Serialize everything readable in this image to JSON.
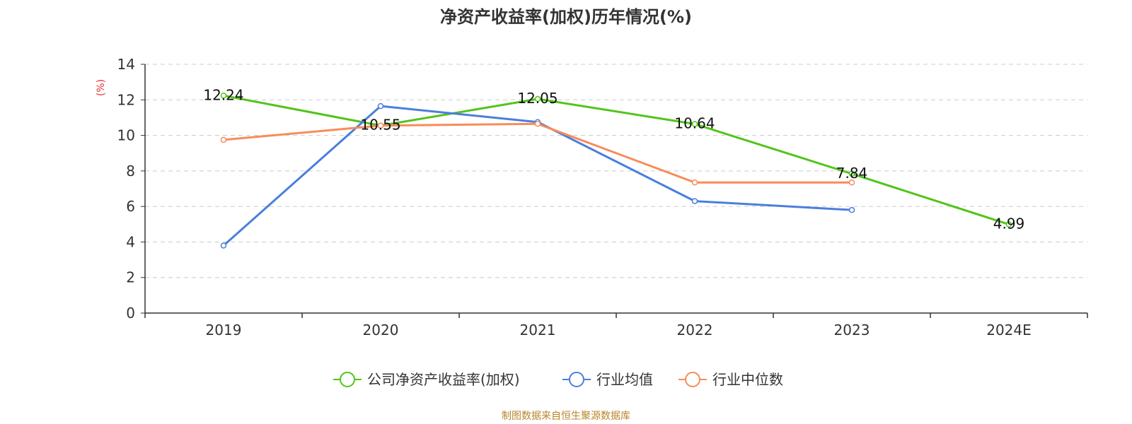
{
  "source_note": "制图数据来自恒生聚源数据库",
  "chart_data": {
    "type": "line",
    "title": "净资产收益率(加权)历年情况(%)",
    "ylabel": "(%)",
    "xlabel": "",
    "categories": [
      "2019",
      "2020",
      "2021",
      "2022",
      "2023",
      "2024E"
    ],
    "ylim": [
      0,
      14
    ],
    "yticks": [
      0,
      2,
      4,
      6,
      8,
      10,
      12,
      14
    ],
    "grid": true,
    "legend_position": "bottom",
    "series": [
      {
        "name": "公司净资产收益率(加权)",
        "color": "#52c41a",
        "values": [
          12.24,
          10.55,
          12.05,
          10.64,
          7.84,
          4.99
        ],
        "labels": [
          "12.24",
          "10.55",
          "12.05",
          "10.64",
          "7.84",
          "4.99"
        ]
      },
      {
        "name": "行业均值",
        "color": "#4a7fdc",
        "values": [
          3.8,
          11.65,
          10.75,
          6.3,
          5.8,
          null
        ]
      },
      {
        "name": "行业中位数",
        "color": "#f78c5a",
        "values": [
          9.75,
          10.55,
          10.65,
          7.35,
          7.35,
          null
        ]
      }
    ]
  }
}
